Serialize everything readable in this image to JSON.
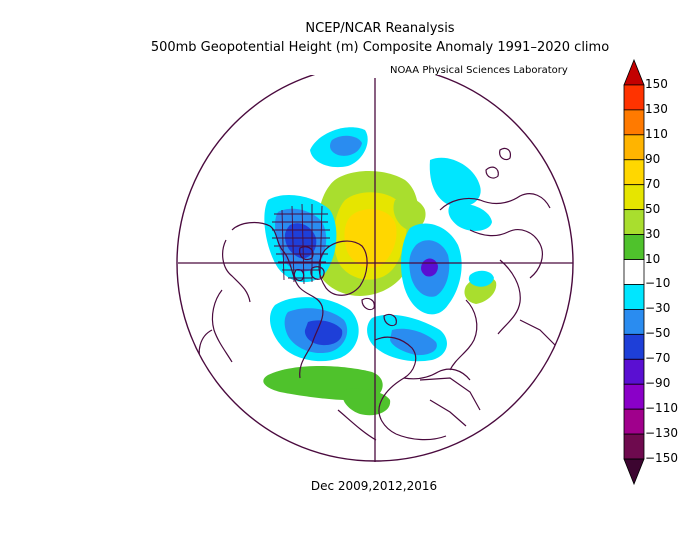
{
  "title_line1": "NCEP/NCAR Reanalysis",
  "title_line2": "500mb Geopotential Height (m) Composite Anomaly 1991–2020 climo",
  "credit": "NOAA Physical Sciences Laboratory",
  "footer": "Dec 2009,2012,2016",
  "colorbar": {
    "labels": [
      "150",
      "130",
      "110",
      "90",
      "70",
      "50",
      "30",
      "10",
      "−10",
      "−30",
      "−50",
      "−70",
      "−90",
      "−110",
      "−130",
      "−150"
    ],
    "colors": [
      "#c30000",
      "#ff3300",
      "#ff7a00",
      "#ffb400",
      "#ffd700",
      "#e6e500",
      "#a9de2e",
      "#4fc22c",
      "#ffffff",
      "#00e6ff",
      "#2a8cf0",
      "#1e3fd8",
      "#5a0fd2",
      "#8a00c8",
      "#a0008c",
      "#6e0a4e",
      "#3c0530"
    ]
  }
}
